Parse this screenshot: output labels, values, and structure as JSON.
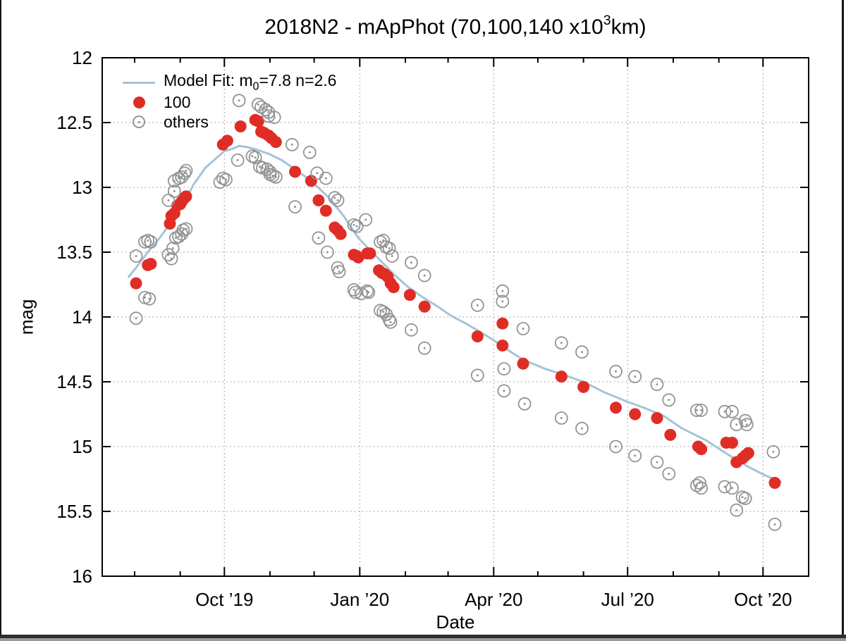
{
  "chart_data": {
    "type": "scatter",
    "title": {
      "prefix": "2018N2 - mApPhot (70,100,140 x10",
      "sup": "3",
      "suffix": "km)"
    },
    "xlabel": "Date",
    "ylabel": "mag",
    "grid": true,
    "x_axis": {
      "unit": "days since 2019-10-01",
      "min": -83,
      "max": 397,
      "major_ticks": [
        {
          "d": 0,
          "label": "Oct ’19"
        },
        {
          "d": 92,
          "label": "Jan ’20"
        },
        {
          "d": 183,
          "label": "Apr ’20"
        },
        {
          "d": 274,
          "label": "Jul ’20"
        },
        {
          "d": 366,
          "label": "Oct ’20"
        }
      ],
      "minor_ticks": [
        -61,
        -30,
        31,
        61,
        123,
        152,
        213,
        244,
        305,
        336
      ]
    },
    "y_axis": {
      "min": 12,
      "max": 16,
      "inverted": true,
      "ticks": [
        {
          "v": 12,
          "label": "12"
        },
        {
          "v": 12.5,
          "label": "12.5"
        },
        {
          "v": 13,
          "label": "13"
        },
        {
          "v": 13.5,
          "label": "13.5"
        },
        {
          "v": 14,
          "label": "14"
        },
        {
          "v": 14.5,
          "label": "14.5"
        },
        {
          "v": 15,
          "label": "15"
        },
        {
          "v": 15.5,
          "label": "15.5"
        },
        {
          "v": 16,
          "label": "16"
        }
      ]
    },
    "colors": {
      "red_series": "#df2d26",
      "others_series": "#949494",
      "fit_line": "#a6c3d9",
      "grid": "#8c8c8c",
      "axis": "#000000"
    },
    "legend": {
      "position": "top-left",
      "rows": [
        {
          "marker": "line",
          "prefix": "Model Fit: m",
          "sub": "0",
          "suffix": "=7.8 n=2.6"
        },
        {
          "marker": "filled-circle",
          "label": "100"
        },
        {
          "marker": "open-circle",
          "label": "others"
        }
      ]
    },
    "model_fit": {
      "name": "Model Fit",
      "m0": 7.8,
      "n": 2.6,
      "points": [
        [
          -65,
          13.69
        ],
        [
          -60,
          13.62
        ],
        [
          -52,
          13.5
        ],
        [
          -44,
          13.39
        ],
        [
          -35,
          13.25
        ],
        [
          -28,
          13.13
        ],
        [
          -21,
          12.98
        ],
        [
          -13,
          12.85
        ],
        [
          -6,
          12.78
        ],
        [
          0,
          12.72
        ],
        [
          6,
          12.7
        ],
        [
          10,
          12.68
        ],
        [
          16,
          12.69
        ],
        [
          22,
          12.71
        ],
        [
          30,
          12.74
        ],
        [
          39,
          12.79
        ],
        [
          48,
          12.86
        ],
        [
          59,
          12.95
        ],
        [
          71,
          13.08
        ],
        [
          81,
          13.22
        ],
        [
          91,
          13.39
        ],
        [
          103,
          13.53
        ],
        [
          116,
          13.68
        ],
        [
          125,
          13.77
        ],
        [
          135,
          13.85
        ],
        [
          145,
          13.92
        ],
        [
          154,
          13.99
        ],
        [
          164,
          14.05
        ],
        [
          173,
          14.11
        ],
        [
          183,
          14.18
        ],
        [
          192,
          14.25
        ],
        [
          203,
          14.33
        ],
        [
          218,
          14.4
        ],
        [
          229,
          14.44
        ],
        [
          244,
          14.5
        ],
        [
          258,
          14.58
        ],
        [
          273,
          14.65
        ],
        [
          285,
          14.7
        ],
        [
          298,
          14.76
        ],
        [
          311,
          14.86
        ],
        [
          327,
          14.95
        ],
        [
          342,
          15.06
        ],
        [
          355,
          15.15
        ],
        [
          367,
          15.22
        ],
        [
          378,
          15.27
        ]
      ]
    },
    "series": [
      {
        "name": "100",
        "marker": "filled-circle",
        "points": [
          [
            -60,
            13.74
          ],
          [
            -52,
            13.6
          ],
          [
            -50,
            13.59
          ],
          [
            -37,
            13.28
          ],
          [
            -36,
            13.22
          ],
          [
            -34,
            13.2
          ],
          [
            -32,
            13.14
          ],
          [
            -30,
            13.13
          ],
          [
            -29,
            13.11
          ],
          [
            -27,
            13.08
          ],
          [
            -26,
            13.07
          ],
          [
            -1,
            12.67
          ],
          [
            2,
            12.64
          ],
          [
            11,
            12.53
          ],
          [
            21,
            12.48
          ],
          [
            23,
            12.49
          ],
          [
            25,
            12.57
          ],
          [
            27,
            12.58
          ],
          [
            30,
            12.6
          ],
          [
            32,
            12.62
          ],
          [
            35,
            12.65
          ],
          [
            48,
            12.88
          ],
          [
            59,
            12.95
          ],
          [
            64,
            13.1
          ],
          [
            69,
            13.18
          ],
          [
            75,
            13.31
          ],
          [
            77,
            13.33
          ],
          [
            79,
            13.36
          ],
          [
            88,
            13.52
          ],
          [
            90,
            13.53
          ],
          [
            91,
            13.54
          ],
          [
            97,
            13.51
          ],
          [
            99,
            13.51
          ],
          [
            105,
            13.64
          ],
          [
            107,
            13.66
          ],
          [
            109,
            13.67
          ],
          [
            111,
            13.69
          ],
          [
            113,
            13.74
          ],
          [
            115,
            13.77
          ],
          [
            126,
            13.83
          ],
          [
            136,
            13.92
          ],
          [
            172,
            14.15
          ],
          [
            189,
            14.05
          ],
          [
            189,
            14.22
          ],
          [
            203,
            14.36
          ],
          [
            229,
            14.46
          ],
          [
            244,
            14.54
          ],
          [
            266,
            14.7
          ],
          [
            279,
            14.75
          ],
          [
            294,
            14.78
          ],
          [
            303,
            14.91
          ],
          [
            322,
            15.0
          ],
          [
            324,
            15.02
          ],
          [
            341,
            14.97
          ],
          [
            345,
            14.97
          ],
          [
            348,
            15.12
          ],
          [
            352,
            15.09
          ],
          [
            354,
            15.07
          ],
          [
            356,
            15.05
          ],
          [
            374,
            15.28
          ]
        ]
      },
      {
        "name": "others",
        "marker": "open-circle",
        "points": [
          [
            -60,
            14.01
          ],
          [
            -54,
            13.85
          ],
          [
            -51,
            13.86
          ],
          [
            -60,
            13.53
          ],
          [
            -54,
            13.42
          ],
          [
            -52,
            13.41
          ],
          [
            -50,
            13.42
          ],
          [
            -38,
            13.52
          ],
          [
            -36,
            13.55
          ],
          [
            -35,
            13.47
          ],
          [
            -38,
            13.1
          ],
          [
            -34,
            13.03
          ],
          [
            -34,
            12.95
          ],
          [
            -31,
            12.93
          ],
          [
            -29,
            12.92
          ],
          [
            -27,
            12.89
          ],
          [
            -26,
            12.87
          ],
          [
            -33,
            13.39
          ],
          [
            -31,
            13.38
          ],
          [
            -29,
            13.36
          ],
          [
            -28,
            13.33
          ],
          [
            -26,
            13.32
          ],
          [
            -3,
            12.96
          ],
          [
            -1,
            12.93
          ],
          [
            1,
            12.94
          ],
          [
            9,
            12.79
          ],
          [
            10,
            12.33
          ],
          [
            23,
            12.36
          ],
          [
            25,
            12.38
          ],
          [
            28,
            12.4
          ],
          [
            30,
            12.42
          ],
          [
            30,
            12.45
          ],
          [
            34,
            12.46
          ],
          [
            19,
            12.76
          ],
          [
            21,
            12.77
          ],
          [
            24,
            12.84
          ],
          [
            26,
            12.85
          ],
          [
            29,
            12.86
          ],
          [
            31,
            12.88
          ],
          [
            31,
            12.9
          ],
          [
            33,
            12.91
          ],
          [
            35,
            12.92
          ],
          [
            46,
            12.67
          ],
          [
            58,
            12.73
          ],
          [
            63,
            12.89
          ],
          [
            69,
            12.93
          ],
          [
            75,
            13.08
          ],
          [
            77,
            13.1
          ],
          [
            88,
            13.29
          ],
          [
            90,
            13.3
          ],
          [
            96,
            13.25
          ],
          [
            106,
            13.42
          ],
          [
            108,
            13.41
          ],
          [
            110,
            13.46
          ],
          [
            112,
            13.47
          ],
          [
            114,
            13.53
          ],
          [
            127,
            13.58
          ],
          [
            136,
            13.68
          ],
          [
            172,
            13.91
          ],
          [
            189,
            13.8
          ],
          [
            189,
            13.88
          ],
          [
            203,
            14.09
          ],
          [
            229,
            14.2
          ],
          [
            243,
            14.27
          ],
          [
            266,
            14.42
          ],
          [
            279,
            14.46
          ],
          [
            294,
            14.52
          ],
          [
            302,
            14.64
          ],
          [
            321,
            14.72
          ],
          [
            324,
            14.72
          ],
          [
            340,
            14.73
          ],
          [
            345,
            14.73
          ],
          [
            348,
            14.83
          ],
          [
            354,
            14.8
          ],
          [
            355,
            14.83
          ],
          [
            48,
            13.15
          ],
          [
            64,
            13.39
          ],
          [
            70,
            13.5
          ],
          [
            77,
            13.62
          ],
          [
            78,
            13.65
          ],
          [
            88,
            13.79
          ],
          [
            89,
            13.81
          ],
          [
            93,
            13.82
          ],
          [
            97,
            13.8
          ],
          [
            98,
            13.81
          ],
          [
            106,
            13.95
          ],
          [
            108,
            13.96
          ],
          [
            110,
            13.98
          ],
          [
            112,
            14.02
          ],
          [
            113,
            14.04
          ],
          [
            127,
            14.1
          ],
          [
            136,
            14.24
          ],
          [
            172,
            14.45
          ],
          [
            190,
            14.4
          ],
          [
            190,
            14.57
          ],
          [
            204,
            14.67
          ],
          [
            229,
            14.78
          ],
          [
            243,
            14.86
          ],
          [
            266,
            15.0
          ],
          [
            279,
            15.07
          ],
          [
            294,
            15.12
          ],
          [
            302,
            15.21
          ],
          [
            321,
            15.3
          ],
          [
            323,
            15.28
          ],
          [
            324,
            15.32
          ],
          [
            340,
            15.31
          ],
          [
            345,
            15.32
          ],
          [
            352,
            15.39
          ],
          [
            354,
            15.4
          ],
          [
            348,
            15.49
          ],
          [
            373,
            15.04
          ],
          [
            374,
            15.6
          ]
        ]
      }
    ]
  }
}
